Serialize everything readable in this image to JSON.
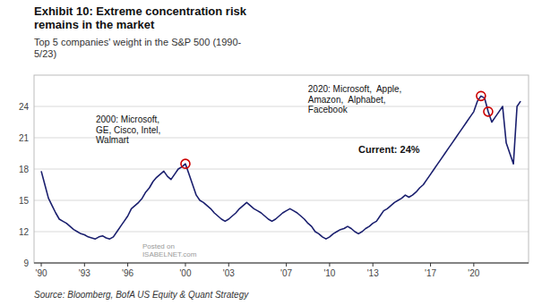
{
  "chart_data": {
    "type": "line",
    "title": "Exhibit 10: Extreme concentration risk\nremains in the market",
    "subtitle": "Top 5 companies' weight in the S&P 500 (1990-\n5/23)",
    "source": "Source: Bloomberg, BofA US Equity & Quant Strategy",
    "annotations": [
      "2000: Microsoft,\nGE, Cisco, Intel,\nWalmart",
      "2020: Microsoft,  Apple,\nAmazon,  Alphabet,\nFacebook",
      "Current: 24%",
      "Posted on\nISABELNET.com"
    ],
    "color": "#1a1f6e",
    "grid": true,
    "xlim": [
      1989.5,
      2023.8
    ],
    "ylim": [
      9,
      27
    ],
    "yticks": [
      9,
      12,
      15,
      18,
      21,
      24
    ],
    "xticks": [
      {
        "value": 1990,
        "label": "'90"
      },
      {
        "value": 1993,
        "label": "'93"
      },
      {
        "value": 1996,
        "label": "'96"
      },
      {
        "value": 2000,
        "label": "'00"
      },
      {
        "value": 2003,
        "label": "'03"
      },
      {
        "value": 2007,
        "label": "'07"
      },
      {
        "value": 2010,
        "label": "'10"
      },
      {
        "value": 2013,
        "label": "'13"
      },
      {
        "value": 2017,
        "label": "'17"
      },
      {
        "value": 2020,
        "label": "'20"
      }
    ],
    "highlights": {
      "x": [
        2000.0,
        2020.5,
        2021.0
      ],
      "y": [
        18.5,
        25.0,
        23.5
      ],
      "color": "#cc0000"
    },
    "x": [
      1990.0,
      1990.25,
      1990.5,
      1990.75,
      1991.0,
      1991.25,
      1991.5,
      1991.75,
      1992.0,
      1992.25,
      1992.5,
      1992.75,
      1993.0,
      1993.25,
      1993.5,
      1993.75,
      1994.0,
      1994.25,
      1994.5,
      1994.75,
      1995.0,
      1995.25,
      1995.5,
      1995.75,
      1996.0,
      1996.25,
      1996.5,
      1996.75,
      1997.0,
      1997.25,
      1997.5,
      1997.75,
      1998.0,
      1998.25,
      1998.5,
      1998.75,
      1999.0,
      1999.25,
      1999.5,
      1999.75,
      2000.0,
      2000.25,
      2000.5,
      2000.75,
      2001.0,
      2001.25,
      2001.5,
      2001.75,
      2002.0,
      2002.25,
      2002.5,
      2002.75,
      2003.0,
      2003.25,
      2003.5,
      2003.75,
      2004.0,
      2004.25,
      2004.5,
      2004.75,
      2005.0,
      2005.25,
      2005.5,
      2005.75,
      2006.0,
      2006.25,
      2006.5,
      2006.75,
      2007.0,
      2007.25,
      2007.5,
      2007.75,
      2008.0,
      2008.25,
      2008.5,
      2008.75,
      2009.0,
      2009.25,
      2009.5,
      2009.75,
      2010.0,
      2010.25,
      2010.5,
      2010.75,
      2011.0,
      2011.25,
      2011.5,
      2011.75,
      2012.0,
      2012.25,
      2012.5,
      2012.75,
      2013.0,
      2013.25,
      2013.5,
      2013.75,
      2014.0,
      2014.25,
      2014.5,
      2014.75,
      2015.0,
      2015.25,
      2015.5,
      2015.75,
      2016.0,
      2016.25,
      2016.5,
      2016.75,
      2017.0,
      2017.25,
      2017.5,
      2017.75,
      2018.0,
      2018.25,
      2018.5,
      2018.75,
      2019.0,
      2019.25,
      2019.5,
      2019.75,
      2020.0,
      2020.25,
      2020.5,
      2020.75,
      2021.0,
      2021.25,
      2021.5,
      2021.75,
      2022.0,
      2022.25,
      2022.5,
      2022.75,
      2023.0,
      2023.25
    ],
    "values": [
      17.8,
      16.5,
      15.2,
      14.5,
      13.8,
      13.2,
      13.0,
      12.8,
      12.5,
      12.2,
      12.0,
      11.8,
      11.7,
      11.5,
      11.4,
      11.3,
      11.5,
      11.6,
      11.4,
      11.3,
      11.5,
      12.0,
      12.5,
      13.0,
      13.5,
      14.2,
      14.5,
      14.8,
      15.2,
      15.8,
      16.2,
      16.8,
      17.2,
      17.5,
      17.8,
      17.3,
      17.0,
      17.5,
      18.0,
      18.2,
      18.5,
      17.5,
      16.5,
      15.5,
      15.0,
      14.8,
      14.5,
      14.2,
      13.8,
      13.5,
      13.2,
      13.0,
      13.2,
      13.5,
      13.8,
      14.2,
      14.5,
      14.8,
      14.5,
      14.2,
      14.0,
      13.8,
      13.5,
      13.2,
      13.0,
      13.2,
      13.5,
      13.8,
      14.0,
      14.2,
      14.0,
      13.8,
      13.5,
      13.2,
      12.8,
      12.5,
      12.0,
      11.8,
      11.5,
      11.3,
      11.5,
      11.8,
      12.0,
      12.2,
      12.3,
      12.5,
      12.3,
      12.0,
      11.8,
      12.0,
      12.3,
      12.5,
      12.8,
      13.0,
      13.5,
      14.0,
      14.2,
      14.5,
      14.8,
      15.0,
      15.2,
      15.5,
      15.3,
      15.5,
      15.8,
      16.2,
      16.5,
      17.0,
      17.5,
      18.0,
      18.5,
      19.0,
      19.5,
      20.0,
      20.5,
      21.0,
      21.5,
      22.0,
      22.5,
      23.0,
      23.5,
      24.5,
      25.0,
      24.8,
      23.5,
      22.5,
      23.0,
      23.5,
      24.0,
      20.5,
      19.5,
      18.5,
      24.0,
      24.5
    ]
  }
}
